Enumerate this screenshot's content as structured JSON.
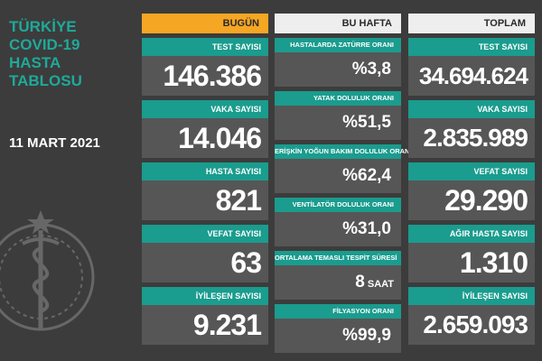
{
  "title_lines": [
    "TÜRKİYE",
    "COVID-19",
    "HASTA",
    "TABLOSU"
  ],
  "date": "11 MART 2021",
  "columns": {
    "today": {
      "header": "BUGÜN",
      "cards": [
        {
          "label": "TEST SAYISI",
          "value": "146.386"
        },
        {
          "label": "VAKA SAYISI",
          "value": "14.046"
        },
        {
          "label": "HASTA SAYISI",
          "value": "821"
        },
        {
          "label": "VEFAT SAYISI",
          "value": "63"
        },
        {
          "label": "İYİLEŞEN SAYISI",
          "value": "9.231"
        }
      ]
    },
    "week": {
      "header": "BU HAFTA",
      "cards": [
        {
          "label": "HASTALARDA ZATÜRRE ORANI",
          "value": "%3,8",
          "unit": ""
        },
        {
          "label": "YATAK DOLULUK ORANI",
          "value": "%51,5",
          "unit": ""
        },
        {
          "label": "ERİŞKİN YOĞUN BAKIM DOLULUK ORANI",
          "value": "%62,4",
          "unit": ""
        },
        {
          "label": "VENTİLATÖR DOLULUK ORANI",
          "value": "%31,0",
          "unit": ""
        },
        {
          "label": "ORTALAMA TEMASLI TESPİT SÜRESİ",
          "value": "8",
          "unit": "SAAT"
        },
        {
          "label": "FİLYASYON ORANI",
          "value": "%99,9",
          "unit": ""
        }
      ]
    },
    "total": {
      "header": "TOPLAM",
      "cards": [
        {
          "label": "TEST SAYISI",
          "value": "34.694.624"
        },
        {
          "label": "VAKA SAYISI",
          "value": "2.835.989"
        },
        {
          "label": "VEFAT SAYISI",
          "value": "29.290"
        },
        {
          "label": "AĞIR HASTA SAYISI",
          "value": "1.310"
        },
        {
          "label": "İYİLEŞEN SAYISI",
          "value": "2.659.093"
        }
      ]
    }
  },
  "colors": {
    "background": "#3c3c3c",
    "teal": "#1a9c8e",
    "orange": "#f5a623",
    "value_box": "#565656"
  }
}
